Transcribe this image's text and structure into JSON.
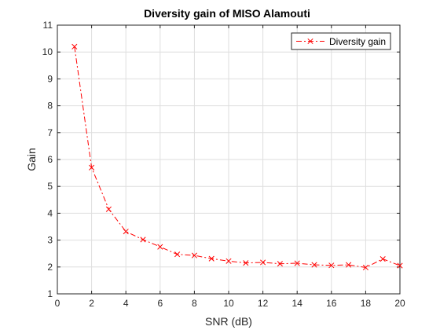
{
  "chart_data": {
    "type": "line",
    "title": "Diversity gain of MISO Alamouti",
    "xlabel": "SNR (dB)",
    "ylabel": "Gain",
    "xlim": [
      0,
      20
    ],
    "ylim": [
      1,
      11
    ],
    "xticks": [
      0,
      2,
      4,
      6,
      8,
      10,
      12,
      14,
      16,
      18,
      20
    ],
    "yticks": [
      1,
      2,
      3,
      4,
      5,
      6,
      7,
      8,
      9,
      10,
      11
    ],
    "grid": true,
    "legend_position": "top-right",
    "series": [
      {
        "name": "Diversity gain",
        "color": "#ff0000",
        "line_style": "dash-dot",
        "marker": "x",
        "x": [
          1,
          2,
          3,
          4,
          5,
          6,
          7,
          8,
          9,
          10,
          11,
          12,
          13,
          14,
          15,
          16,
          17,
          18,
          19,
          20
        ],
        "y": [
          10.2,
          5.7,
          4.15,
          3.32,
          3.02,
          2.75,
          2.47,
          2.43,
          2.31,
          2.22,
          2.15,
          2.17,
          2.12,
          2.14,
          2.08,
          2.06,
          2.08,
          1.98,
          2.3,
          2.05
        ]
      }
    ]
  }
}
